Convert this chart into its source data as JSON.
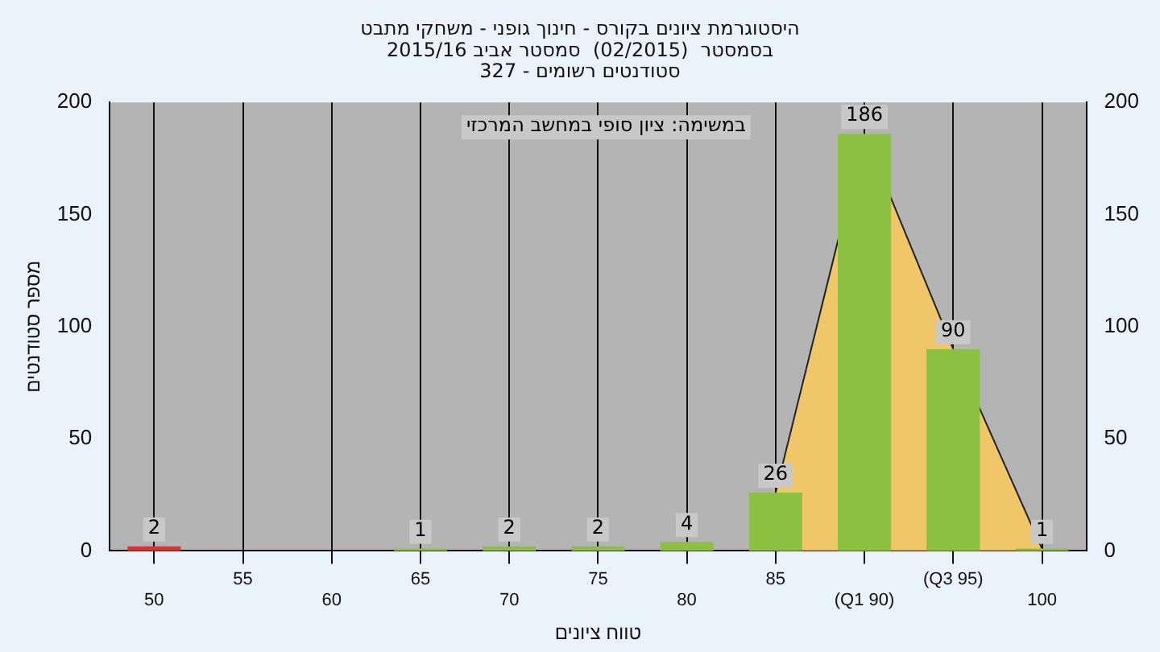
{
  "chart_data": {
    "type": "bar",
    "title": "היסטוגרמת ציונים בקורס - חינוך גופני - משחקי מתבט\nבסמסטר  (02/2015)  סמסטר אביב 2015/16\nסטודנטים רשומים - 327",
    "xlabel": "טווח ציונים",
    "ylabel": "מספר סטודנטים",
    "annotations": [
      "במשימה: ציון סופי במחשב המרכזי"
    ],
    "categories": [
      "50",
      "55",
      "60",
      "65",
      "70",
      "75",
      "80",
      "85",
      "(Q1 90)",
      "(Q3 95)",
      "100"
    ],
    "series": [
      {
        "type": "area",
        "color": "#ffcc55",
        "values": [
          null,
          null,
          null,
          null,
          null,
          null,
          null,
          26,
          186,
          90,
          1
        ]
      },
      {
        "colors": [
          "#e03030",
          "#8cc040",
          "#8cc040",
          "#8cc040",
          "#8cc040",
          "#8cc040",
          "#8cc040",
          "#8cc040",
          "#8cc040",
          "#8cc040",
          "#8cc040"
        ],
        "values": [
          2,
          0,
          0,
          1,
          2,
          2,
          4,
          26,
          186,
          90,
          1
        ],
        "value_labels": [
          "2",
          null,
          null,
          "1",
          "2",
          "2",
          "4",
          "26",
          "186",
          "90",
          "1"
        ]
      }
    ],
    "ylim": [
      0,
      200
    ],
    "yticks": [
      0,
      50,
      100,
      150,
      200
    ],
    "y2lim": [
      0,
      200
    ],
    "y2ticks": [
      0,
      50,
      100,
      150,
      200
    ],
    "grid": "x",
    "legend": false
  }
}
